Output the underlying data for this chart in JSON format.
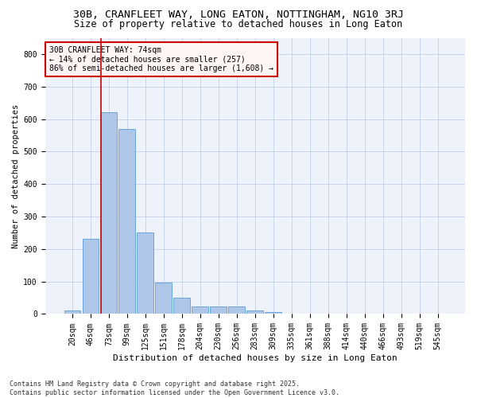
{
  "title1": "30B, CRANFLEET WAY, LONG EATON, NOTTINGHAM, NG10 3RJ",
  "title2": "Size of property relative to detached houses in Long Eaton",
  "xlabel": "Distribution of detached houses by size in Long Eaton",
  "ylabel": "Number of detached properties",
  "footnote": "Contains HM Land Registry data © Crown copyright and database right 2025.\nContains public sector information licensed under the Open Government Licence v3.0.",
  "bar_labels": [
    "20sqm",
    "46sqm",
    "73sqm",
    "99sqm",
    "125sqm",
    "151sqm",
    "178sqm",
    "204sqm",
    "230sqm",
    "256sqm",
    "283sqm",
    "309sqm",
    "335sqm",
    "361sqm",
    "388sqm",
    "414sqm",
    "440sqm",
    "466sqm",
    "493sqm",
    "519sqm",
    "545sqm"
  ],
  "bar_values": [
    10,
    232,
    620,
    570,
    250,
    97,
    50,
    22,
    22,
    24,
    10,
    5,
    0,
    0,
    0,
    0,
    0,
    0,
    0,
    0,
    0
  ],
  "bar_color": "#aec6e8",
  "bar_edge_color": "#5a9fd4",
  "background_color": "#eef2fb",
  "grid_color": "#c8d4ee",
  "annotation_text": "30B CRANFLEET WAY: 74sqm\n← 14% of detached houses are smaller (257)\n86% of semi-detached houses are larger (1,608) →",
  "vline_color": "#cc0000",
  "ylim": [
    0,
    850
  ],
  "yticks": [
    0,
    100,
    200,
    300,
    400,
    500,
    600,
    700,
    800
  ],
  "annotation_box_facecolor": "#fff5f5",
  "annotation_box_edge": "#cc0000",
  "title1_fontsize": 9.5,
  "title2_fontsize": 8.5,
  "xlabel_fontsize": 8,
  "ylabel_fontsize": 7.5,
  "tick_fontsize": 7,
  "annot_fontsize": 7,
  "footnote_fontsize": 6
}
